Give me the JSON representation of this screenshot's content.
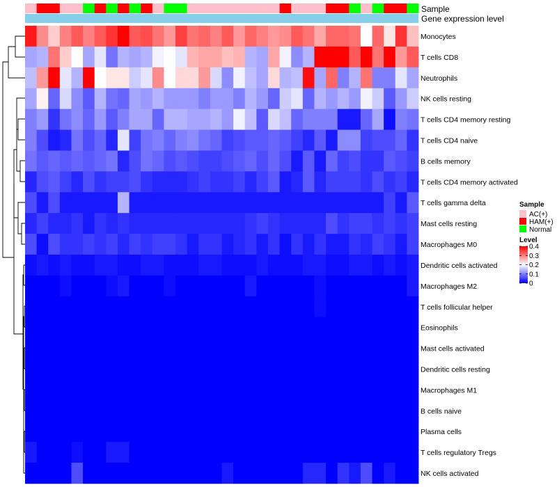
{
  "chart_data": {
    "type": "heatmap",
    "title": "",
    "annotation_tracks": [
      "Sample",
      "Gene expression level"
    ],
    "sample_legend": {
      "title": "Sample",
      "entries": [
        {
          "label": "AC(+)",
          "color": "#FFC0CB"
        },
        {
          "label": "HAM(+)",
          "color": "#FF0000"
        },
        {
          "label": "Normal",
          "color": "#00FF00"
        }
      ]
    },
    "level_legend": {
      "title": "Level",
      "ticks": [
        "0.4",
        "0.3",
        "0.2",
        "0.1",
        "0"
      ],
      "min": 0,
      "max": 0.4,
      "colors": [
        "#0000FF",
        "#FFFFFF",
        "#FF0000"
      ]
    },
    "expression_track_color": "#87CEEB",
    "sample_groups": [
      "AC(+)",
      "HAM(+)",
      "HAM(+)",
      "AC(+)",
      "AC(+)",
      "Normal",
      "HAM(+)",
      "Normal",
      "HAM(+)",
      "Normal",
      "HAM(+)",
      "AC(+)",
      "Normal",
      "Normal",
      "AC(+)",
      "AC(+)",
      "AC(+)",
      "AC(+)",
      "AC(+)",
      "AC(+)",
      "AC(+)",
      "AC(+)",
      "HAM(+)",
      "AC(+)",
      "AC(+)",
      "AC(+)",
      "HAM(+)",
      "HAM(+)",
      "Normal",
      "AC(+)",
      "Normal",
      "HAM(+)",
      "HAM(+)",
      "Normal"
    ],
    "rows": [
      "Monocytes",
      "T cells CD8",
      "Neutrophils",
      "NK cells resting",
      "T cells CD4 memory resting",
      "T cells CD4 naive",
      "B cells memory",
      "T cells CD4 memory activated",
      "T cells gamma delta",
      "Mast cells resting",
      "Macrophages M0",
      "Dendritic cells activated",
      "Macrophages M2",
      "T cells follicular helper",
      "Eosinophils",
      "Mast cells activated",
      "Dendritic cells resting",
      "Macrophages M1",
      "B cells naive",
      "Plasma cells",
      "T cells regulatory  Tregs",
      "NK cells activated"
    ],
    "values": [
      [
        0.38,
        0.29,
        0.24,
        0.3,
        0.33,
        0.3,
        0.33,
        0.36,
        0.4,
        0.33,
        0.34,
        0.31,
        0.28,
        0.35,
        0.31,
        0.32,
        0.3,
        0.33,
        0.28,
        0.32,
        0.3,
        0.28,
        0.29,
        0.33,
        0.31,
        0.27,
        0.32,
        0.32,
        0.31,
        0.2,
        0.32,
        0.22,
        0.36,
        0.25
      ],
      [
        0.13,
        0.14,
        0.31,
        0.24,
        0.2,
        0.13,
        0.18,
        0.09,
        0.14,
        0.13,
        0.14,
        0.19,
        0.2,
        0.18,
        0.26,
        0.27,
        0.27,
        0.25,
        0.26,
        0.14,
        0.13,
        0.27,
        0.19,
        0.11,
        0.14,
        0.4,
        0.4,
        0.4,
        0.33,
        0.4,
        0.31,
        0.4,
        0.28,
        0.33
      ],
      [
        0.15,
        0.28,
        0.4,
        0.18,
        0.14,
        0.4,
        0.2,
        0.22,
        0.22,
        0.16,
        0.18,
        0.29,
        0.2,
        0.23,
        0.23,
        0.28,
        0.17,
        0.11,
        0.19,
        0.15,
        0.13,
        0.23,
        0.14,
        0.15,
        0.39,
        0.13,
        0.32,
        0.1,
        0.14,
        0.31,
        0.1,
        0.1,
        0.18,
        0.13
      ],
      [
        0.13,
        0.21,
        0.08,
        0.17,
        0.11,
        0.07,
        0.14,
        0.09,
        0.08,
        0.13,
        0.12,
        0.14,
        0.12,
        0.12,
        0.12,
        0.1,
        0.12,
        0.12,
        0.1,
        0.14,
        0.12,
        0.08,
        0.16,
        0.18,
        0.08,
        0.14,
        0.12,
        0.14,
        0.12,
        0.19,
        0.16,
        0.07,
        0.12,
        0.16
      ],
      [
        0.1,
        0.12,
        0.04,
        0.09,
        0.11,
        0.08,
        0.12,
        0.07,
        0.1,
        0.13,
        0.13,
        0.08,
        0.14,
        0.14,
        0.13,
        0.13,
        0.14,
        0.12,
        0.19,
        0.15,
        0.07,
        0.17,
        0.15,
        0.08,
        0.1,
        0.1,
        0.1,
        0.02,
        0.02,
        0.08,
        0.13,
        0.01,
        0.1,
        0.09
      ],
      [
        0.1,
        0.06,
        0.02,
        0.03,
        0.09,
        0.06,
        0.08,
        0.03,
        0.18,
        0.05,
        0.09,
        0.1,
        0.08,
        0.1,
        0.11,
        0.09,
        0.08,
        0.05,
        0.06,
        0.07,
        0.07,
        0.08,
        0.07,
        0.05,
        0.03,
        0.07,
        0.02,
        0.11,
        0.11,
        0.05,
        0.06,
        0.06,
        0.08,
        0.04
      ],
      [
        0.09,
        0.07,
        0.08,
        0.07,
        0.08,
        0.07,
        0.08,
        0.09,
        0.03,
        0.06,
        0.09,
        0.08,
        0.06,
        0.07,
        0.06,
        0.05,
        0.05,
        0.06,
        0.07,
        0.08,
        0.06,
        0.08,
        0.06,
        0.02,
        0.07,
        0.02,
        0.08,
        0.05,
        0.06,
        0.04,
        0.04,
        0.07,
        0.06,
        0.05
      ],
      [
        0.03,
        0.06,
        0.07,
        0.05,
        0.03,
        0.06,
        0.04,
        0.05,
        0.05,
        0.06,
        0.04,
        0.03,
        0.03,
        0.03,
        0.04,
        0.05,
        0.04,
        0.04,
        0.05,
        0.03,
        0.05,
        0.07,
        0.02,
        0.03,
        0.07,
        0.03,
        0.05,
        0.05,
        0.05,
        0.04,
        0.06,
        0.04,
        0.05,
        0.03
      ],
      [
        0.06,
        0.02,
        0.06,
        0.02,
        0.02,
        0.02,
        0.02,
        0.02,
        0.14,
        0.02,
        0.02,
        0.02,
        0.02,
        0.02,
        0.02,
        0.02,
        0.02,
        0.02,
        0.02,
        0.02,
        0.02,
        0.02,
        0.02,
        0.02,
        0.02,
        0.02,
        0.02,
        0.02,
        0.02,
        0.02,
        0.02,
        0.05,
        0.02,
        0.07
      ],
      [
        0.03,
        0.05,
        0.03,
        0.03,
        0.04,
        0.02,
        0.04,
        0.03,
        0.04,
        0.03,
        0.03,
        0.03,
        0.03,
        0.03,
        0.03,
        0.03,
        0.03,
        0.03,
        0.03,
        0.04,
        0.05,
        0.04,
        0.03,
        0.03,
        0.03,
        0.03,
        0.06,
        0.04,
        0.05,
        0.05,
        0.04,
        0.05,
        0.04,
        0.05
      ],
      [
        0.06,
        0.01,
        0.06,
        0.04,
        0.04,
        0.05,
        0.04,
        0.05,
        0.03,
        0.05,
        0.04,
        0.05,
        0.05,
        0.04,
        0.02,
        0.04,
        0.04,
        0.02,
        0.03,
        0.04,
        0.02,
        0.04,
        0.01,
        0.04,
        0.02,
        0.04,
        0.02,
        0.02,
        0.04,
        0.03,
        0.05,
        0.04,
        0.02,
        0.05
      ],
      [
        0.01,
        0.02,
        0.01,
        0.02,
        0.01,
        0.01,
        0.02,
        0.02,
        0.01,
        0.01,
        0.02,
        0.02,
        0.01,
        0.01,
        0.01,
        0.02,
        0.02,
        0.01,
        0.01,
        0.01,
        0.02,
        0.01,
        0.01,
        0.01,
        0.02,
        0.02,
        0.01,
        0.01,
        0.02,
        0.02,
        0.01,
        0.02,
        0.01,
        0.02
      ],
      [
        0.0,
        0.0,
        0.0,
        0.01,
        0.0,
        0.0,
        0.0,
        0.01,
        0.02,
        0.0,
        0.0,
        0.0,
        0.01,
        0.0,
        0.0,
        0.0,
        0.0,
        0.0,
        0.0,
        0.02,
        0.0,
        0.0,
        0.0,
        0.0,
        0.0,
        0.01,
        0.0,
        0.0,
        0.0,
        0.0,
        0.0,
        0.0,
        0.0,
        0.02
      ],
      [
        0.0,
        0.0,
        0.0,
        0.0,
        0.0,
        0.0,
        0.0,
        0.0,
        0.0,
        0.0,
        0.0,
        0.0,
        0.0,
        0.0,
        0.0,
        0.0,
        0.0,
        0.0,
        0.0,
        0.0,
        0.0,
        0.0,
        0.0,
        0.0,
        0.0,
        0.01,
        0.0,
        0.0,
        0.0,
        0.0,
        0.0,
        0.0,
        0.0,
        0.0
      ],
      [
        0.0,
        0.0,
        0.0,
        0.0,
        0.0,
        0.0,
        0.0,
        0.0,
        0.0,
        0.0,
        0.0,
        0.0,
        0.0,
        0.0,
        0.0,
        0.0,
        0.0,
        0.0,
        0.0,
        0.0,
        0.0,
        0.0,
        0.0,
        0.0,
        0.0,
        0.0,
        0.0,
        0.0,
        0.0,
        0.0,
        0.0,
        0.0,
        0.0,
        0.0
      ],
      [
        0.0,
        0.0,
        0.0,
        0.0,
        0.0,
        0.0,
        0.0,
        0.0,
        0.0,
        0.0,
        0.0,
        0.0,
        0.0,
        0.0,
        0.0,
        0.0,
        0.0,
        0.0,
        0.0,
        0.0,
        0.0,
        0.0,
        0.0,
        0.0,
        0.0,
        0.0,
        0.0,
        0.0,
        0.0,
        0.0,
        0.0,
        0.0,
        0.0,
        0.0
      ],
      [
        0.0,
        0.0,
        0.0,
        0.0,
        0.0,
        0.0,
        0.0,
        0.0,
        0.0,
        0.0,
        0.0,
        0.0,
        0.0,
        0.0,
        0.0,
        0.0,
        0.0,
        0.0,
        0.0,
        0.0,
        0.0,
        0.0,
        0.0,
        0.0,
        0.0,
        0.0,
        0.0,
        0.0,
        0.0,
        0.0,
        0.0,
        0.0,
        0.0,
        0.0
      ],
      [
        0.0,
        0.0,
        0.0,
        0.0,
        0.0,
        0.0,
        0.0,
        0.0,
        0.0,
        0.0,
        0.0,
        0.0,
        0.0,
        0.0,
        0.0,
        0.0,
        0.0,
        0.0,
        0.0,
        0.0,
        0.0,
        0.0,
        0.0,
        0.0,
        0.0,
        0.0,
        0.0,
        0.0,
        0.0,
        0.0,
        0.0,
        0.0,
        0.0,
        0.0
      ],
      [
        0.0,
        0.0,
        0.0,
        0.0,
        0.0,
        0.0,
        0.0,
        0.0,
        0.0,
        0.0,
        0.0,
        0.0,
        0.0,
        0.0,
        0.0,
        0.0,
        0.0,
        0.0,
        0.0,
        0.0,
        0.0,
        0.0,
        0.0,
        0.0,
        0.0,
        0.0,
        0.0,
        0.0,
        0.0,
        0.0,
        0.0,
        0.0,
        0.0,
        0.0
      ],
      [
        0.0,
        0.0,
        0.0,
        0.0,
        0.0,
        0.0,
        0.0,
        0.0,
        0.0,
        0.0,
        0.0,
        0.0,
        0.0,
        0.0,
        0.0,
        0.0,
        0.0,
        0.0,
        0.0,
        0.0,
        0.0,
        0.0,
        0.0,
        0.0,
        0.0,
        0.0,
        0.0,
        0.0,
        0.0,
        0.0,
        0.0,
        0.0,
        0.0,
        0.0
      ],
      [
        0.02,
        0.0,
        0.0,
        0.0,
        0.01,
        0.0,
        0.0,
        0.02,
        0.02,
        0.0,
        0.0,
        0.0,
        0.0,
        0.0,
        0.0,
        0.0,
        0.0,
        0.0,
        0.0,
        0.0,
        0.0,
        0.0,
        0.0,
        0.0,
        0.0,
        0.0,
        0.0,
        0.0,
        0.0,
        0.0,
        0.0,
        0.0,
        0.0,
        0.0
      ],
      [
        0.0,
        0.0,
        0.0,
        0.0,
        0.06,
        0.0,
        0.0,
        0.0,
        0.0,
        0.0,
        0.0,
        0.0,
        0.0,
        0.0,
        0.0,
        0.0,
        0.0,
        0.02,
        0.0,
        0.0,
        0.0,
        0.0,
        0.0,
        0.0,
        0.03,
        0.03,
        0.0,
        0.04,
        0.02,
        0.06,
        0.0,
        0.02,
        0.0,
        0.0
      ]
    ]
  }
}
